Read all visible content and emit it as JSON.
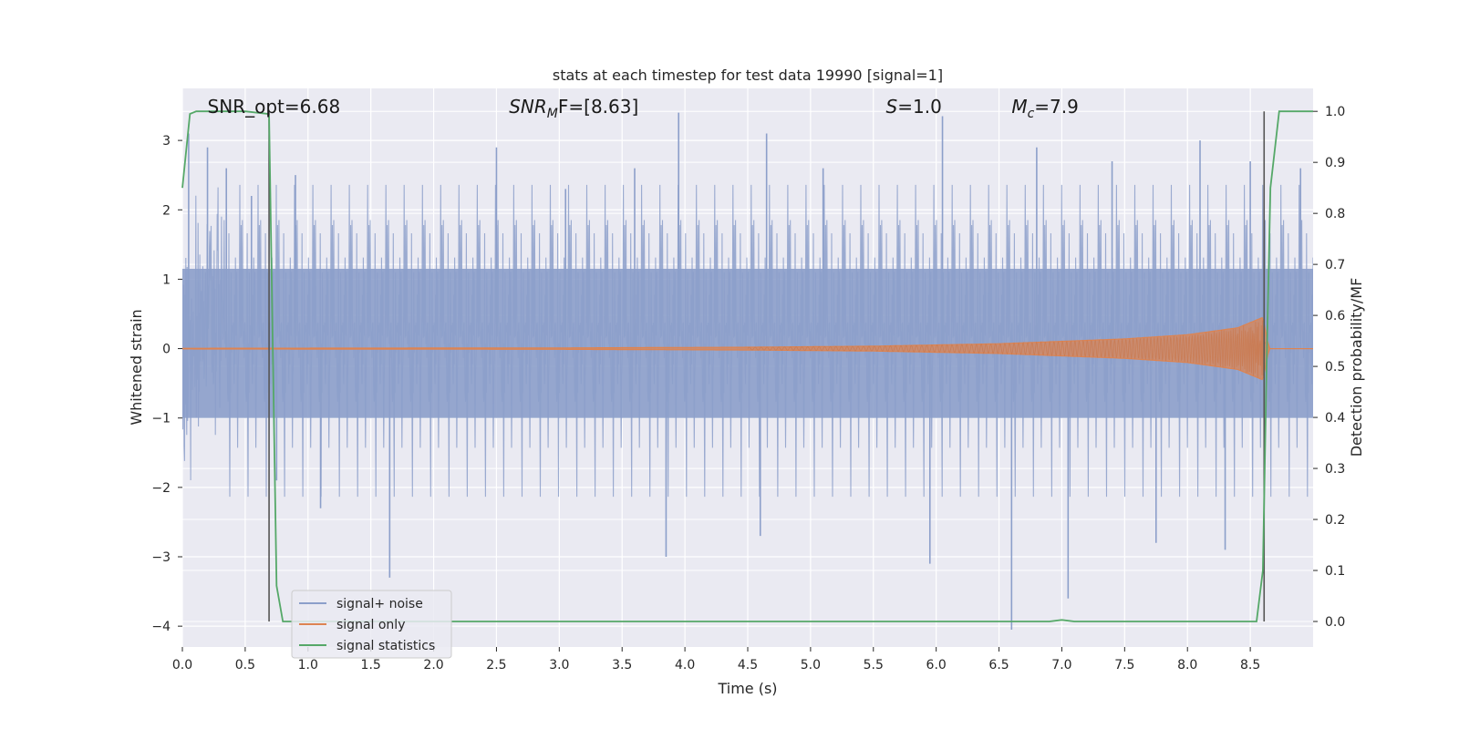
{
  "chart_data": {
    "type": "line",
    "title": "stats at each timestep for test data 19990 [signal=1]",
    "xlabel": "Time (s)",
    "ylabel_left": "Whitened strain",
    "ylabel_right": "Detection probability/MF",
    "xlim": [
      0.0,
      9.0
    ],
    "ylim_left": [
      -4.3,
      3.75
    ],
    "ylim_right": [
      -0.05,
      1.045
    ],
    "x_ticks": [
      "0.0",
      "0.5",
      "1.0",
      "1.5",
      "2.0",
      "2.5",
      "3.0",
      "3.5",
      "4.0",
      "4.5",
      "5.0",
      "5.5",
      "6.0",
      "6.5",
      "7.0",
      "7.5",
      "8.0",
      "8.5"
    ],
    "x_tick_values": [
      0.0,
      0.5,
      1.0,
      1.5,
      2.0,
      2.5,
      3.0,
      3.5,
      4.0,
      4.5,
      5.0,
      5.5,
      6.0,
      6.5,
      7.0,
      7.5,
      8.0,
      8.5
    ],
    "y_ticks_left": [
      "3",
      "2",
      "1",
      "0",
      "−1",
      "−2",
      "−3",
      "−4"
    ],
    "y_tick_values_left": [
      3,
      2,
      1,
      0,
      -1,
      -2,
      -3,
      -4
    ],
    "y_ticks_right": [
      "1.0",
      "0.9",
      "0.8",
      "0.7",
      "0.6",
      "0.5",
      "0.4",
      "0.3",
      "0.2",
      "0.1",
      "0.0"
    ],
    "y_tick_values_right": [
      1.0,
      0.9,
      0.8,
      0.7,
      0.6,
      0.5,
      0.4,
      0.3,
      0.2,
      0.1,
      0.0
    ],
    "grid": true,
    "legend_position": "lower-left",
    "annotations": [
      {
        "text": "SNR_opt=6.68",
        "x": 0.2
      },
      {
        "text": "SNR",
        "sub": "M",
        "rest": "F=[8.63]",
        "italic": true,
        "x": 2.6
      },
      {
        "text": "S",
        "rest": "=1.0",
        "italic": true,
        "x": 5.6
      },
      {
        "text": "M",
        "sub": "c",
        "rest": "=7.9",
        "italic": true,
        "x": 6.6
      }
    ],
    "vertical_markers": [
      0.69,
      8.61
    ],
    "series": [
      {
        "name": "signal+ noise",
        "axis": "left",
        "color": "#8c9fca",
        "noise_band": [
          -1.0,
          1.15
        ],
        "peaks": [
          {
            "x": 0.05,
            "v": 3.1
          },
          {
            "x": 0.2,
            "v": 2.9
          },
          {
            "x": 0.35,
            "v": 2.6
          },
          {
            "x": 0.55,
            "v": 2.2
          },
          {
            "x": 0.75,
            "v": -1.9
          },
          {
            "x": 0.9,
            "v": 2.5
          },
          {
            "x": 1.1,
            "v": -2.3
          },
          {
            "x": 1.65,
            "v": -3.3
          },
          {
            "x": 2.5,
            "v": 2.9
          },
          {
            "x": 3.05,
            "v": 2.3
          },
          {
            "x": 3.6,
            "v": 2.6
          },
          {
            "x": 3.85,
            "v": -3.0
          },
          {
            "x": 3.95,
            "v": 3.4
          },
          {
            "x": 4.6,
            "v": -2.7
          },
          {
            "x": 4.65,
            "v": 3.1
          },
          {
            "x": 5.1,
            "v": 2.6
          },
          {
            "x": 5.95,
            "v": -3.1
          },
          {
            "x": 6.05,
            "v": 3.35
          },
          {
            "x": 6.6,
            "v": -4.05
          },
          {
            "x": 6.8,
            "v": 2.9
          },
          {
            "x": 7.05,
            "v": -3.6
          },
          {
            "x": 7.4,
            "v": 2.7
          },
          {
            "x": 7.75,
            "v": -2.8
          },
          {
            "x": 8.1,
            "v": 3.0
          },
          {
            "x": 8.3,
            "v": -2.9
          },
          {
            "x": 8.5,
            "v": 2.7
          },
          {
            "x": 8.9,
            "v": 2.6
          }
        ]
      },
      {
        "name": "signal only",
        "axis": "left",
        "color": "#dd8452",
        "envelope": [
          {
            "x": 0.0,
            "a": 0.005
          },
          {
            "x": 3.0,
            "a": 0.01
          },
          {
            "x": 4.5,
            "a": 0.02
          },
          {
            "x": 5.5,
            "a": 0.035
          },
          {
            "x": 6.5,
            "a": 0.07
          },
          {
            "x": 7.5,
            "a": 0.14
          },
          {
            "x": 8.0,
            "a": 0.2
          },
          {
            "x": 8.4,
            "a": 0.3
          },
          {
            "x": 8.6,
            "a": 0.45
          },
          {
            "x": 8.65,
            "a": 0.0
          },
          {
            "x": 9.0,
            "a": 0.0
          }
        ]
      },
      {
        "name": "signal statistics",
        "axis": "right",
        "color": "#55a868",
        "x": [
          0.0,
          0.06,
          0.11,
          0.2,
          0.5,
          0.68,
          0.69,
          0.75,
          0.8,
          6.9,
          7.0,
          7.1,
          8.55,
          8.6,
          8.63,
          8.66,
          8.73,
          9.0
        ],
        "y": [
          0.85,
          0.995,
          1.0,
          1.0,
          1.0,
          0.995,
          0.99,
          0.07,
          0.0,
          0.0,
          0.003,
          0.0,
          0.0,
          0.1,
          0.5,
          0.85,
          1.0,
          1.0
        ]
      }
    ]
  }
}
